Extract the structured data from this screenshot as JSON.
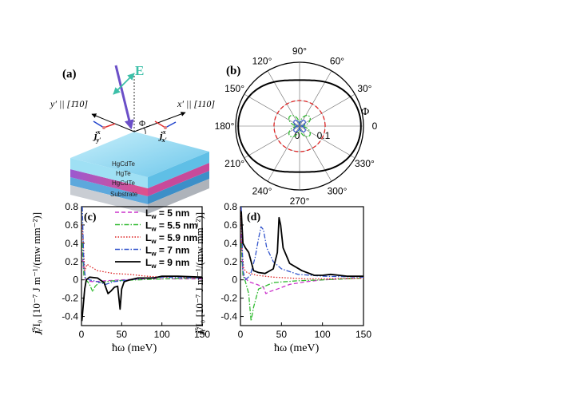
{
  "figure": {
    "panel_a": {
      "label": "(a)",
      "field_label": "E",
      "y_axis_label": "y′ || [1̄10]",
      "x_axis_label": "x′ || [110]",
      "jy_label": "j",
      "jy_sup": "x",
      "jy_sub": "y′",
      "jx_label": "j",
      "jx_sup": "x",
      "jx_sub": "x′",
      "phi_label": "Φ",
      "layers": [
        "HgCdTe",
        "HgTe",
        "HgCdTe",
        "Substrate"
      ],
      "colors": {
        "top": "#7fd3ef",
        "hgte_top": "#9b59d0",
        "hgte_bottom": "#e0508a",
        "hgcdte_lower": "#5da8dc",
        "substrate": "#c9cdd3",
        "field_arrow": "#6b4fc8",
        "e_arrow": "#3cbfa8"
      }
    },
    "panel_b": {
      "label": "(b)",
      "phi_label": "Φ",
      "angle_labels": [
        "0",
        "30°",
        "60°",
        "90°",
        "120°",
        "150°",
        "180°",
        "210°",
        "240°",
        "270°",
        "300°",
        "330°"
      ],
      "radial_labels": [
        "0",
        "0.1"
      ]
    },
    "panel_c": {
      "label": "(c)"
    },
    "panel_d": {
      "label": "(d)"
    },
    "y_axis_title": "j",
    "y_axis_sup": "x",
    "y_axis_sub": "i",
    "y_axis_rest": "/I₀  [10⁻⁷ J m⁻¹/(mw mm⁻²)]",
    "x_axis_title": "ħω (meV)"
  },
  "chart_data": [
    {
      "type": "line",
      "panel": "(c)",
      "xlabel": "ħω (meV)",
      "ylabel": "j_i^x/I_0 [10^-7 J m^-1/(mw mm^-2)]",
      "xlim": [
        0,
        150
      ],
      "ylim": [
        -0.5,
        0.8
      ],
      "xticks": [
        "0",
        "50",
        "100",
        "150"
      ],
      "yticks": [
        "0.8",
        "0.6",
        "0.4",
        "0.2",
        "0",
        "-0.2",
        "-0.4"
      ],
      "legend_position": "top-right",
      "series": [
        {
          "name": "Lw = 5 nm",
          "label_main": "L",
          "label_sub": "w",
          "label_rest": " = 5 nm",
          "color": "#cc33cc",
          "style": "dashed",
          "points": [
            [
              1,
              0.3
            ],
            [
              3,
              0.05
            ],
            [
              6,
              -0.01
            ],
            [
              15,
              -0.02
            ],
            [
              30,
              -0.01
            ],
            [
              50,
              0.0
            ],
            [
              80,
              0.01
            ],
            [
              100,
              0.01
            ],
            [
              120,
              0.01
            ],
            [
              150,
              0.01
            ]
          ]
        },
        {
          "name": "Lw = 5.5 nm",
          "label_main": "L",
          "label_sub": "w",
          "label_rest": " = 5.5 nm",
          "color": "#33bb33",
          "style": "dashdot",
          "points": [
            [
              1,
              0.4
            ],
            [
              3,
              0.05
            ],
            [
              6,
              0.0
            ],
            [
              10,
              -0.05
            ],
            [
              14,
              -0.13
            ],
            [
              17,
              -0.07
            ],
            [
              22,
              -0.03
            ],
            [
              40,
              -0.01
            ],
            [
              70,
              0.0
            ],
            [
              100,
              0.01
            ],
            [
              150,
              0.02
            ]
          ]
        },
        {
          "name": "Lw = 5.9 nm",
          "label_main": "L",
          "label_sub": "w",
          "label_rest": " = 5.9 nm",
          "color": "#dd2222",
          "style": "dotted",
          "points": [
            [
              1,
              0.6
            ],
            [
              4,
              0.1
            ],
            [
              7,
              0.17
            ],
            [
              10,
              0.15
            ],
            [
              20,
              0.1
            ],
            [
              40,
              0.07
            ],
            [
              60,
              0.06
            ],
            [
              80,
              0.04
            ],
            [
              100,
              0.03
            ],
            [
              150,
              0.02
            ]
          ]
        },
        {
          "name": "Lw = 7 nm",
          "label_main": "L",
          "label_sub": "w",
          "label_rest": " = 7 nm",
          "color": "#3355cc",
          "style": "dashdot",
          "points": [
            [
              1,
              0.8
            ],
            [
              3,
              0.15
            ],
            [
              5,
              0.02
            ],
            [
              10,
              0.0
            ],
            [
              20,
              -0.02
            ],
            [
              30,
              -0.05
            ],
            [
              40,
              -0.02
            ],
            [
              50,
              -0.01
            ],
            [
              60,
              0.0
            ],
            [
              80,
              0.02
            ],
            [
              100,
              0.03
            ],
            [
              150,
              0.02
            ]
          ]
        },
        {
          "name": "Lw = 9 nm",
          "label_main": "L",
          "label_sub": "w",
          "label_rest": " = 9 nm",
          "color": "#000000",
          "style": "solid",
          "points": [
            [
              0.5,
              -0.45
            ],
            [
              2,
              -0.3
            ],
            [
              4,
              -0.1
            ],
            [
              6,
              0.0
            ],
            [
              10,
              0.03
            ],
            [
              20,
              0.02
            ],
            [
              28,
              -0.03
            ],
            [
              33,
              -0.15
            ],
            [
              37,
              -0.12
            ],
            [
              41,
              -0.08
            ],
            [
              45,
              -0.07
            ],
            [
              48,
              -0.32
            ],
            [
              50,
              -0.1
            ],
            [
              53,
              -0.02
            ],
            [
              60,
              0.0
            ],
            [
              70,
              0.02
            ],
            [
              90,
              0.02
            ],
            [
              100,
              0.04
            ],
            [
              120,
              0.04
            ],
            [
              150,
              0.03
            ]
          ]
        }
      ]
    },
    {
      "type": "line",
      "panel": "(d)",
      "xlabel": "ħω (meV)",
      "ylabel": "j_i^x/I_0 [10^-7 J m^-1/(mw mm^-2)]",
      "xlim": [
        0,
        150
      ],
      "ylim": [
        -0.5,
        0.8
      ],
      "xticks": [
        "0",
        "50",
        "100",
        "150"
      ],
      "yticks": [
        "0.8",
        "0.6",
        "0.4",
        "0.2",
        "0",
        "-0.2",
        "-0.4"
      ],
      "series": [
        {
          "name": "Lw = 5 nm",
          "color": "#cc33cc",
          "style": "dashed",
          "points": [
            [
              1,
              0.5
            ],
            [
              3,
              0.05
            ],
            [
              10,
              -0.02
            ],
            [
              20,
              -0.05
            ],
            [
              28,
              -0.08
            ],
            [
              31,
              -0.15
            ],
            [
              35,
              -0.13
            ],
            [
              45,
              -0.1
            ],
            [
              60,
              -0.05
            ],
            [
              80,
              -0.02
            ],
            [
              100,
              0.0
            ],
            [
              150,
              0.02
            ]
          ]
        },
        {
          "name": "Lw = 5.5 nm",
          "color": "#33bb33",
          "style": "dashdot",
          "points": [
            [
              1,
              0.4
            ],
            [
              3,
              0.05
            ],
            [
              6,
              -0.02
            ],
            [
              10,
              -0.15
            ],
            [
              13,
              -0.45
            ],
            [
              16,
              -0.3
            ],
            [
              22,
              -0.1
            ],
            [
              40,
              -0.03
            ],
            [
              70,
              -0.01
            ],
            [
              100,
              0.0
            ],
            [
              150,
              0.02
            ]
          ]
        },
        {
          "name": "Lw = 5.9 nm",
          "color": "#dd2222",
          "style": "dotted",
          "points": [
            [
              0.5,
              0.78
            ],
            [
              2,
              0.3
            ],
            [
              4,
              0.12
            ],
            [
              8,
              0.08
            ],
            [
              20,
              0.05
            ],
            [
              40,
              0.03
            ],
            [
              60,
              0.02
            ],
            [
              80,
              0.01
            ],
            [
              100,
              0.01
            ],
            [
              150,
              0.02
            ]
          ]
        },
        {
          "name": "Lw = 7 nm",
          "color": "#3355cc",
          "style": "dashdot",
          "points": [
            [
              1,
              0.8
            ],
            [
              3,
              0.1
            ],
            [
              6,
              0.0
            ],
            [
              12,
              0.05
            ],
            [
              18,
              0.25
            ],
            [
              22,
              0.45
            ],
            [
              25,
              0.58
            ],
            [
              28,
              0.55
            ],
            [
              32,
              0.35
            ],
            [
              40,
              0.2
            ],
            [
              50,
              0.12
            ],
            [
              70,
              0.06
            ],
            [
              100,
              0.04
            ],
            [
              150,
              0.03
            ]
          ]
        },
        {
          "name": "Lw = 9 nm",
          "color": "#000000",
          "style": "solid",
          "points": [
            [
              1,
              0.75
            ],
            [
              3,
              0.4
            ],
            [
              6,
              0.35
            ],
            [
              10,
              0.3
            ],
            [
              16,
              0.1
            ],
            [
              22,
              0.08
            ],
            [
              30,
              0.07
            ],
            [
              40,
              0.12
            ],
            [
              45,
              0.3
            ],
            [
              47,
              0.68
            ],
            [
              49,
              0.6
            ],
            [
              52,
              0.35
            ],
            [
              60,
              0.18
            ],
            [
              75,
              0.1
            ],
            [
              90,
              0.05
            ],
            [
              100,
              0.05
            ],
            [
              110,
              0.06
            ],
            [
              130,
              0.04
            ],
            [
              150,
              0.04
            ]
          ]
        }
      ]
    },
    {
      "type": "polar",
      "panel": "(b)",
      "theta_labels_deg": [
        0,
        30,
        60,
        90,
        120,
        150,
        180,
        210,
        240,
        270,
        300,
        330
      ],
      "r_ticks": [
        0,
        0.1
      ],
      "series": [
        {
          "name": "Lw = 9 nm",
          "color": "#000000",
          "style": "solid",
          "shape": "peanut",
          "r_at_0deg": 0.24,
          "r_at_90deg": 0.18
        },
        {
          "name": "Lw = 5.9 nm",
          "color": "#dd2222",
          "style": "dashed",
          "shape": "circle",
          "r": 0.1
        },
        {
          "name": "Lw = 5.5 nm",
          "color": "#33bb33",
          "style": "dashdot",
          "shape": "four-lobe",
          "r_max": 0.05
        },
        {
          "name": "Lw = 7 nm",
          "color": "#3355cc",
          "style": "solid",
          "shape": "four-lobe",
          "r_max": 0.025
        }
      ]
    }
  ]
}
